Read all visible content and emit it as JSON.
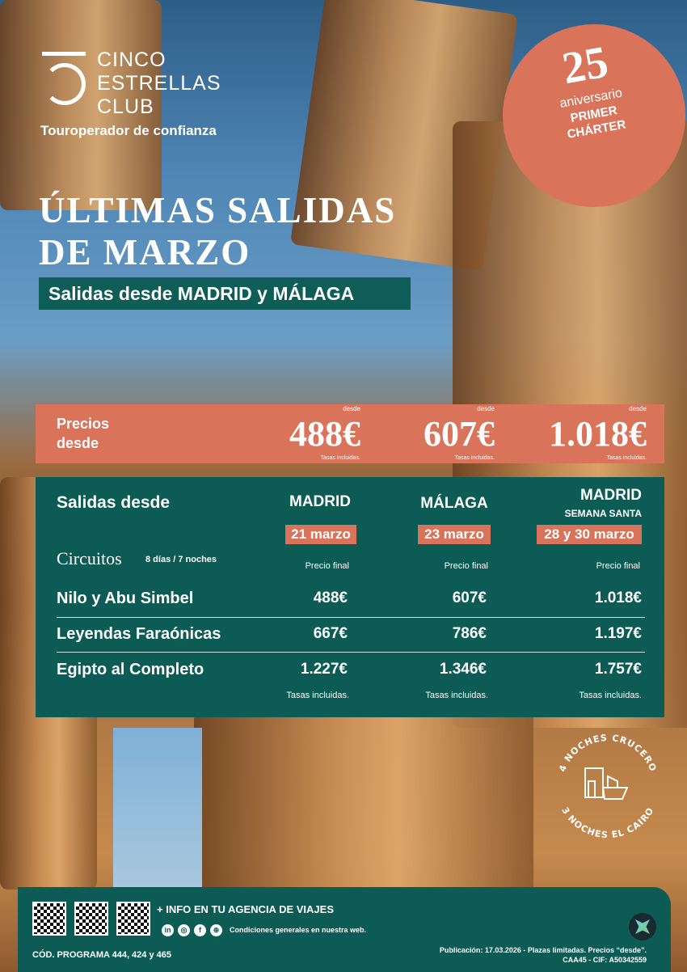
{
  "brand": {
    "line1": "CINCO",
    "line2": "ESTRELLAS",
    "line3": "CLUB",
    "tagline": "Touroperador de confianza"
  },
  "badge": {
    "number": "25",
    "text": "aniversario",
    "line1": "PRIMER",
    "line2": "CHÁRTER"
  },
  "headline": {
    "line1": "ÚLTIMAS SALIDAS",
    "line2": "DE MARZO",
    "subtitle": "Salidas desde MADRID y MÁLAGA"
  },
  "prices_band": {
    "label1": "Precios",
    "label2": "desde",
    "items": [
      {
        "desde": "desde",
        "value": "488€",
        "note": "Tasas incluidas."
      },
      {
        "desde": "desde",
        "value": "607€",
        "note": "Tasas incluidas."
      },
      {
        "desde": "desde",
        "value": "1.018€",
        "note": "Tasas incluidas."
      }
    ]
  },
  "table": {
    "header": "Salidas desde",
    "circuits_title": "Circuitos",
    "circuits_duration": "8 días / 7 noches",
    "columns": [
      {
        "city": "MADRID",
        "extra": "",
        "date": "21 marzo",
        "price_label": "Precio final",
        "taxes": "Tasas  incluidas."
      },
      {
        "city": "MÁLAGA",
        "extra": "",
        "date": "23 marzo",
        "price_label": "Precio final",
        "taxes": "Tasas  incluidas."
      },
      {
        "city": "MADRID",
        "extra": "SEMANA SANTA",
        "date": "28 y 30 marzo",
        "price_label": "Precio final",
        "taxes": "Tasas  incluidas."
      }
    ],
    "rows": [
      {
        "name": "Nilo y Abu Simbel",
        "prices": [
          "488€",
          "607€",
          "1.018€"
        ]
      },
      {
        "name": "Leyendas Faraónicas",
        "prices": [
          "667€",
          "786€",
          "1.197€"
        ]
      },
      {
        "name": "Egipto al Completo",
        "prices": [
          "1.227€",
          "1.346€",
          "1.757€"
        ]
      }
    ]
  },
  "stamp": {
    "top": "4 NOCHES CRUCERO",
    "bottom": "3 NOCHES EL CAIRO"
  },
  "footer": {
    "info": "+ INFO EN TU AGENCIA DE VIAJES",
    "conditions": "Condiciones generales en nuestra web.",
    "program": "CÓD. PROGRAMA 444, 424 y 465",
    "publication": "Publicación: 17.03.2026 - Plazas limitadas. Precios “desde”.",
    "cif": "CAA45 - CIF: A50342559",
    "social": [
      "in",
      "◎",
      "f",
      "⊕"
    ]
  },
  "colors": {
    "accent": "#d9735a",
    "green": "#0c5b55"
  }
}
